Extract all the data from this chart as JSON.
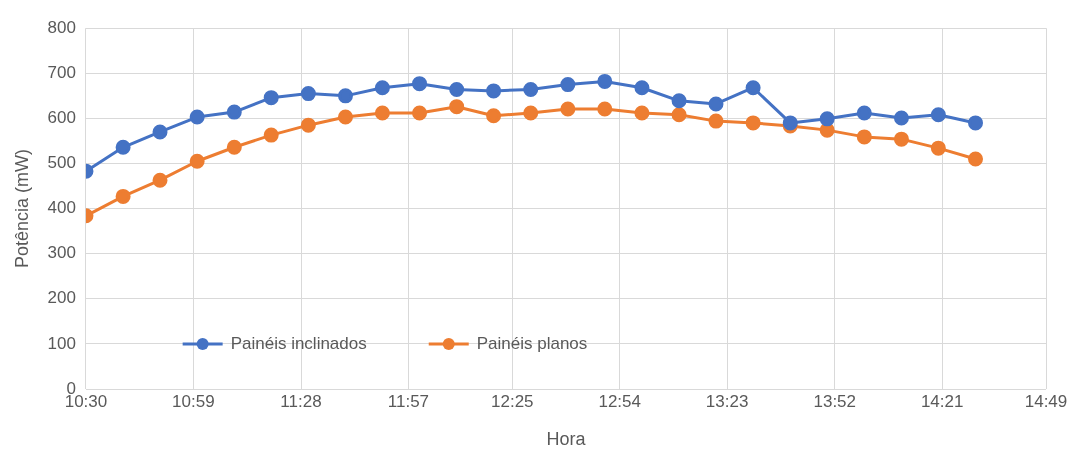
{
  "chart_data": {
    "type": "line",
    "xlabel": "Hora",
    "ylabel": "Potência (mW)",
    "x": [
      10.5,
      10.667,
      10.833,
      11,
      11.167,
      11.333,
      11.5,
      11.667,
      11.833,
      12,
      12.167,
      12.333,
      12.5,
      12.667,
      12.833,
      13,
      13.167,
      13.333,
      13.5,
      13.667,
      13.833,
      14,
      14.167,
      14.333,
      14.5
    ],
    "series": [
      {
        "name": "Painéis inclinados",
        "color": "#4472c4",
        "values": [
          483,
          536,
          570,
          603,
          614,
          646,
          655,
          650,
          668,
          677,
          664,
          661,
          664,
          675,
          682,
          668,
          639,
          632,
          668,
          590,
          599,
          612,
          601,
          608,
          590
        ]
      },
      {
        "name": "Painéis planos",
        "color": "#ed7d31",
        "values": [
          384,
          427,
          463,
          505,
          536,
          563,
          585,
          603,
          612,
          612,
          626,
          606,
          612,
          621,
          621,
          612,
          608,
          594,
          590,
          583,
          574,
          559,
          554,
          534,
          510
        ]
      }
    ],
    "xlim": [
      10.5,
      14.817
    ],
    "xticks": [
      {
        "value": 10.5,
        "label": "10:30"
      },
      {
        "value": 10.983,
        "label": "10:59"
      },
      {
        "value": 11.467,
        "label": "11:28"
      },
      {
        "value": 11.95,
        "label": "11:57"
      },
      {
        "value": 12.417,
        "label": "12:25"
      },
      {
        "value": 12.9,
        "label": "12:54"
      },
      {
        "value": 13.383,
        "label": "13:23"
      },
      {
        "value": 13.867,
        "label": "13:52"
      },
      {
        "value": 14.35,
        "label": "14:21"
      },
      {
        "value": 14.817,
        "label": "14:49"
      }
    ],
    "ylim": [
      0,
      800
    ],
    "yticks": [
      0,
      100,
      200,
      300,
      400,
      500,
      600,
      700,
      800
    ],
    "grid": true,
    "legend": "bottom",
    "marker": "circle",
    "line_style": "solid"
  }
}
